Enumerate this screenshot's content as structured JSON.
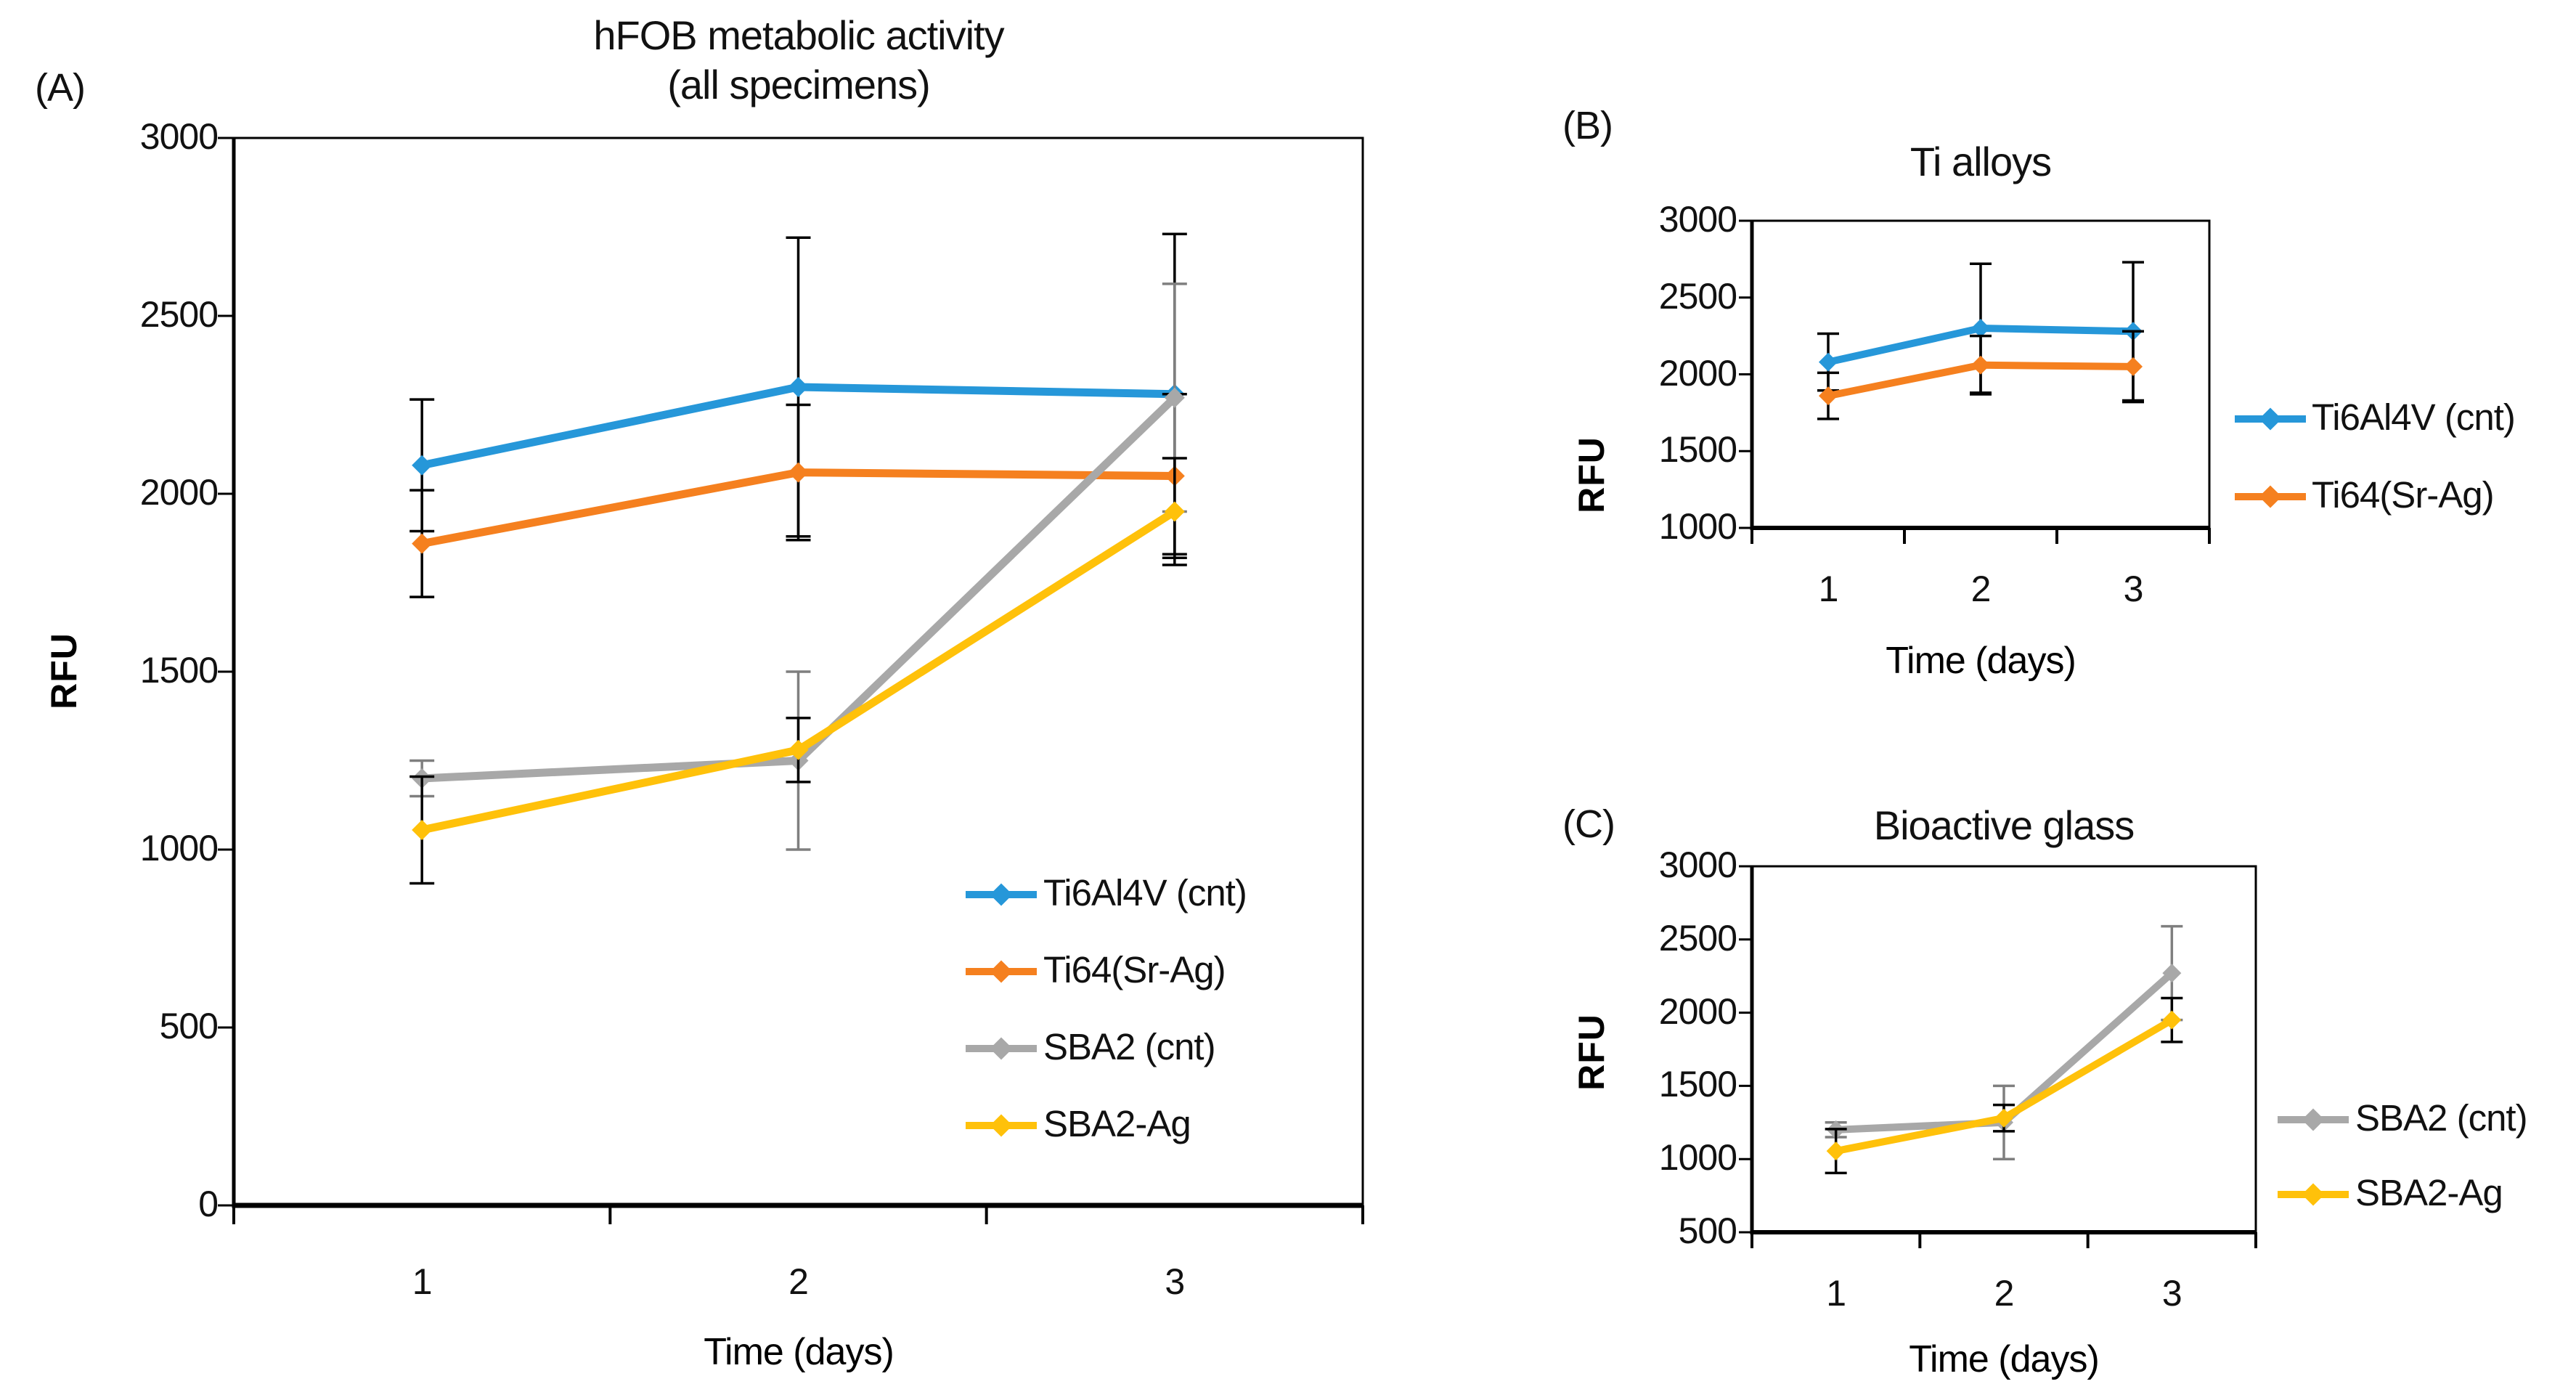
{
  "figure": {
    "background": "#ffffff",
    "text_color": "#111111"
  },
  "chart_data": [
    {
      "id": "A",
      "type": "line",
      "panel_label": "(A)",
      "title_lines": [
        "hFOB metabolic activity",
        "(all specimens)"
      ],
      "xlabel": "Time (days)",
      "ylabel": "RFU",
      "categories": [
        "1",
        "2",
        "3"
      ],
      "ylim": [
        0,
        3000
      ],
      "ytick_step": 500,
      "grid": false,
      "legend_position": "inside-bottom-right",
      "series": [
        {
          "name": "Ti6Al4V (cnt)",
          "marker": "diamond",
          "color": "#2697D9",
          "error_color": "#000000",
          "values": [
            2080,
            2300,
            2280
          ],
          "errors": [
            185,
            420,
            450
          ]
        },
        {
          "name": "Ti64(Sr-Ag)",
          "marker": "diamond",
          "color": "#F5801F",
          "error_color": "#000000",
          "values": [
            1860,
            2060,
            2050
          ],
          "errors": [
            150,
            190,
            230
          ]
        },
        {
          "name": "SBA2 (cnt)",
          "marker": "diamond",
          "color": "#A8A8A8",
          "error_color": "#7F7F7F",
          "values": [
            1200,
            1250,
            2270
          ],
          "errors": [
            50,
            250,
            320
          ]
        },
        {
          "name": "SBA2-Ag",
          "marker": "diamond",
          "color": "#FFC10A",
          "error_color": "#000000",
          "values": [
            1055,
            1280,
            1950
          ],
          "errors": [
            150,
            90,
            150
          ]
        }
      ]
    },
    {
      "id": "B",
      "type": "line",
      "panel_label": "(B)",
      "title_lines": [
        "Ti alloys"
      ],
      "xlabel": "Time (days)",
      "ylabel": "RFU",
      "categories": [
        "1",
        "2",
        "3"
      ],
      "ylim": [
        1000,
        3000
      ],
      "ytick_step": 500,
      "grid": false,
      "legend_position": "right",
      "series": [
        {
          "name": "Ti6Al4V (cnt)",
          "marker": "diamond",
          "color": "#2697D9",
          "error_color": "#000000",
          "values": [
            2080,
            2300,
            2280
          ],
          "errors": [
            185,
            420,
            450
          ]
        },
        {
          "name": "Ti64(Sr-Ag)",
          "marker": "diamond",
          "color": "#F5801F",
          "error_color": "#000000",
          "values": [
            1860,
            2060,
            2050
          ],
          "errors": [
            150,
            190,
            230
          ]
        }
      ]
    },
    {
      "id": "C",
      "type": "line",
      "panel_label": "(C)",
      "title_lines": [
        "Bioactive glass"
      ],
      "xlabel": "Time (days)",
      "ylabel": "RFU",
      "categories": [
        "1",
        "2",
        "3"
      ],
      "ylim": [
        500,
        3000
      ],
      "ytick_step": 500,
      "grid": false,
      "legend_position": "right",
      "series": [
        {
          "name": "SBA2 (cnt)",
          "marker": "diamond",
          "color": "#A8A8A8",
          "error_color": "#7F7F7F",
          "values": [
            1200,
            1250,
            2270
          ],
          "errors": [
            50,
            250,
            320
          ]
        },
        {
          "name": "SBA2-Ag",
          "marker": "diamond",
          "color": "#FFC10A",
          "error_color": "#000000",
          "values": [
            1055,
            1280,
            1950
          ],
          "errors": [
            150,
            90,
            150
          ]
        }
      ]
    }
  ]
}
